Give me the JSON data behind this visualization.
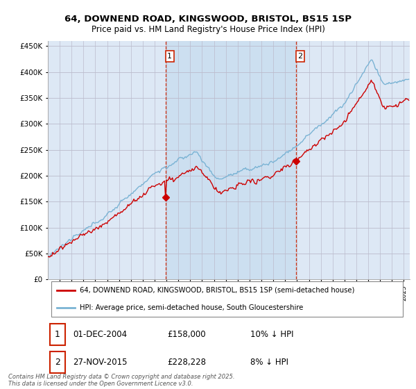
{
  "title": "64, DOWNEND ROAD, KINGSWOOD, BRISTOL, BS15 1SP",
  "subtitle": "Price paid vs. HM Land Registry's House Price Index (HPI)",
  "sale1_date": "01-DEC-2004",
  "sale1_price": 158000,
  "sale1_label": "1",
  "sale1_hpi_text": "10% ↓ HPI",
  "sale2_date": "27-NOV-2015",
  "sale2_price": 228228,
  "sale2_label": "2",
  "sale2_hpi_text": "8% ↓ HPI",
  "legend_line1": "64, DOWNEND ROAD, KINGSWOOD, BRISTOL, BS15 1SP (semi-detached house)",
  "legend_line2": "HPI: Average price, semi-detached house, South Gloucestershire",
  "footer": "Contains HM Land Registry data © Crown copyright and database right 2025.\nThis data is licensed under the Open Government Licence v3.0.",
  "sale1_x": 2004.917,
  "sale2_x": 2015.917,
  "hpi_color": "#7ab3d4",
  "price_color": "#cc0000",
  "vline_color": "#cc2200",
  "background_color": "#ffffff",
  "plot_bg_color": "#dde8f5",
  "between_bg_color": "#ccdff0",
  "grid_color": "#bbbbcc",
  "ylim": [
    0,
    460000
  ],
  "xlim": [
    1995.0,
    2025.5
  ]
}
